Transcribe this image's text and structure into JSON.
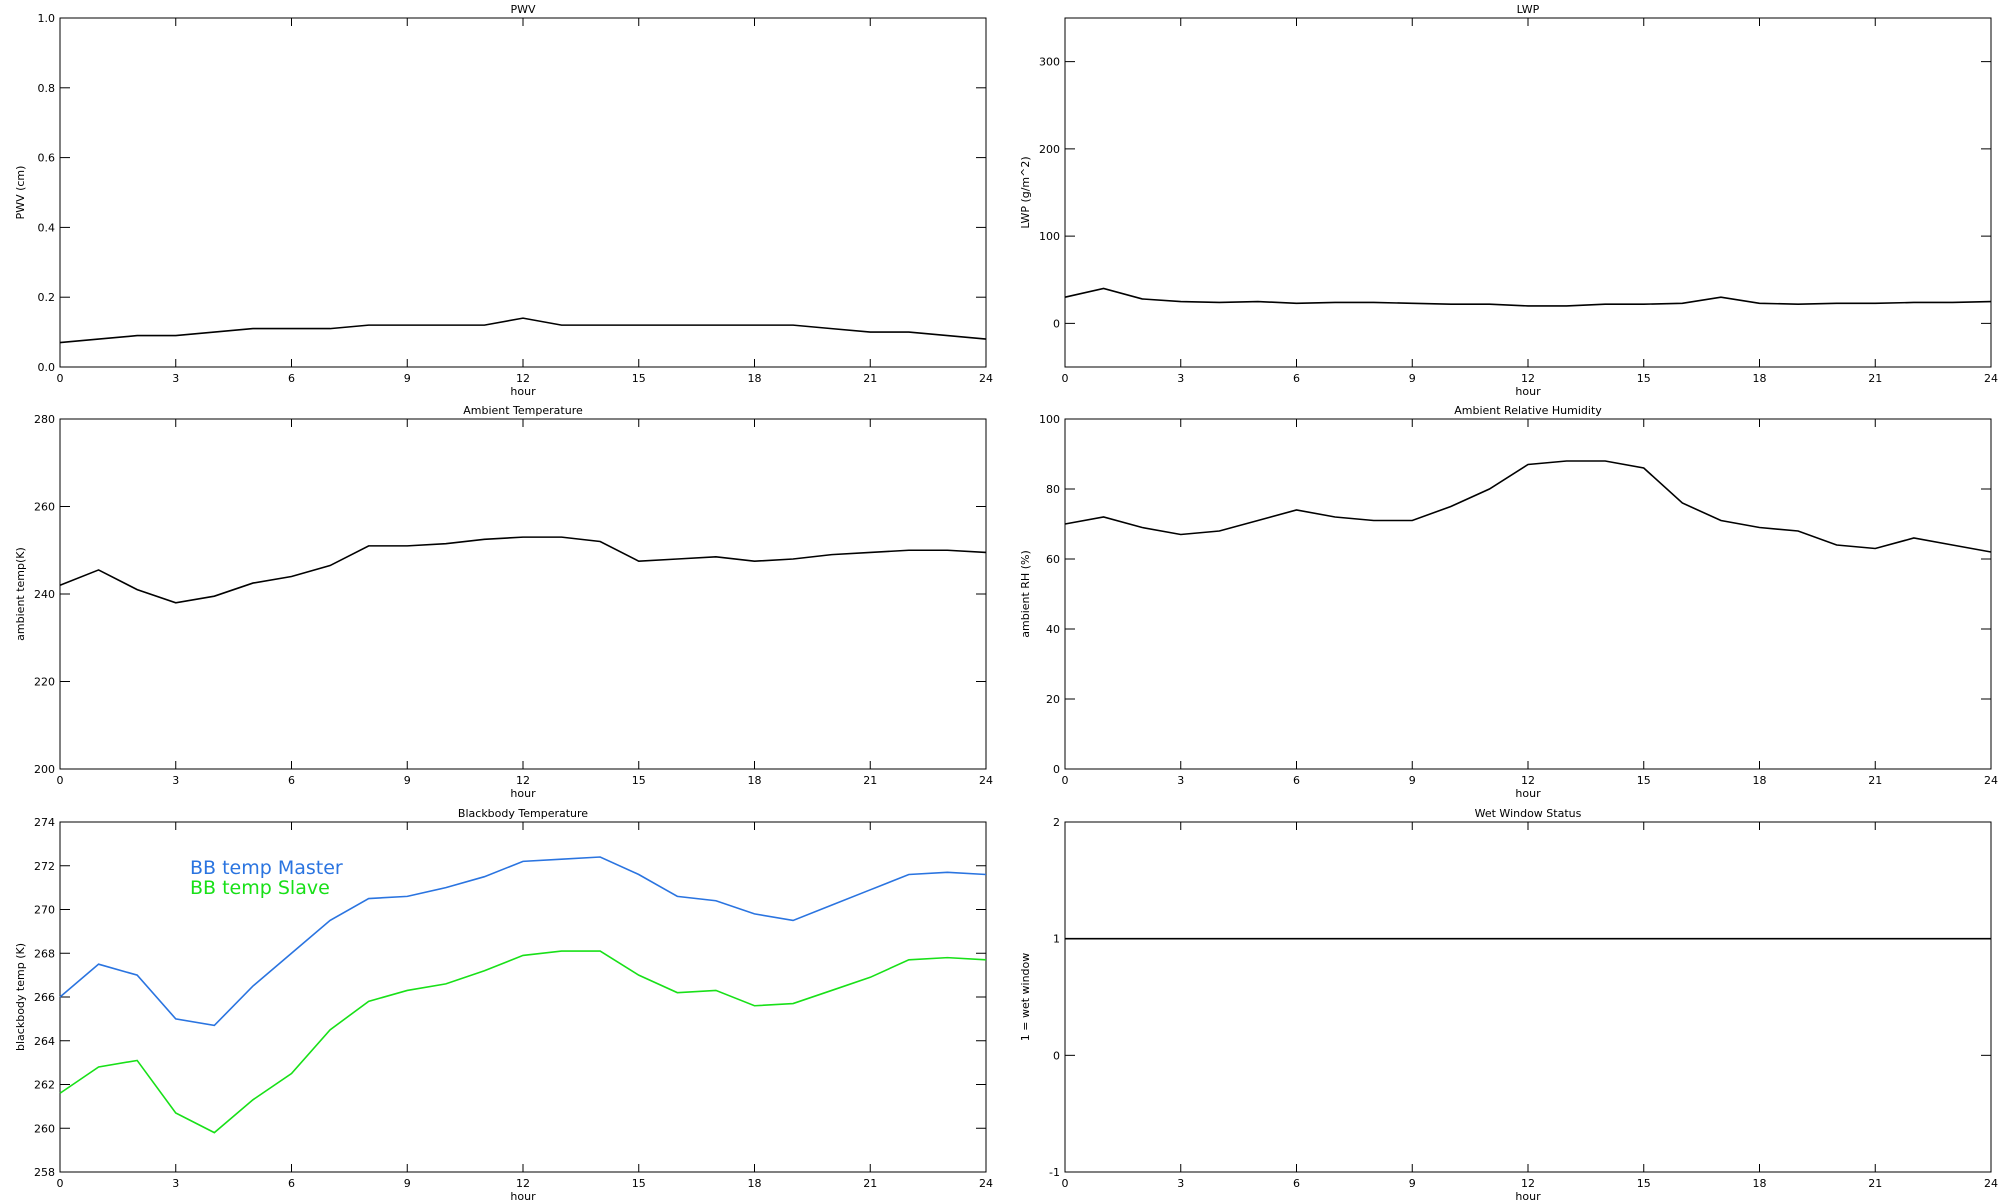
{
  "chart_data": [
    {
      "type": "line",
      "title": "PWV",
      "xlabel": "hour",
      "ylabel": "PWV (cm)",
      "x": [
        0,
        1,
        2,
        3,
        4,
        5,
        6,
        7,
        8,
        9,
        10,
        11,
        12,
        13,
        14,
        15,
        16,
        17,
        18,
        19,
        20,
        21,
        22,
        23,
        24
      ],
      "values": [
        0.07,
        0.08,
        0.09,
        0.09,
        0.1,
        0.11,
        0.11,
        0.11,
        0.12,
        0.12,
        0.12,
        0.12,
        0.14,
        0.12,
        0.12,
        0.12,
        0.12,
        0.12,
        0.12,
        0.12,
        0.11,
        0.1,
        0.1,
        0.09,
        0.08
      ],
      "color": "#000000",
      "xlim": [
        0,
        24
      ],
      "xticks": [
        0,
        3,
        6,
        9,
        12,
        15,
        18,
        21,
        24
      ],
      "ylim": [
        0,
        1
      ],
      "yticks": [
        {
          "value": 0,
          "label": "0.0"
        },
        {
          "value": 0.2,
          "label": "0.2"
        },
        {
          "value": 0.4,
          "label": "0.4"
        },
        {
          "value": 0.6,
          "label": "0.6"
        },
        {
          "value": 0.8,
          "label": "0.8"
        },
        {
          "value": 1,
          "label": "1.0"
        }
      ]
    },
    {
      "type": "line",
      "title": "LWP",
      "xlabel": "hour",
      "ylabel": "LWP (g/m^2)",
      "x": [
        0,
        1,
        2,
        3,
        4,
        5,
        6,
        7,
        8,
        9,
        10,
        11,
        12,
        13,
        14,
        15,
        16,
        17,
        18,
        19,
        20,
        21,
        22,
        23,
        24
      ],
      "values": [
        30,
        40,
        28,
        25,
        24,
        25,
        23,
        24,
        24,
        23,
        22,
        22,
        20,
        20,
        22,
        22,
        23,
        30,
        23,
        22,
        23,
        23,
        24,
        24,
        25
      ],
      "color": "#000000",
      "xlim": [
        0,
        24
      ],
      "xticks": [
        0,
        3,
        6,
        9,
        12,
        15,
        18,
        21,
        24
      ],
      "ylim": [
        -50,
        350
      ],
      "yticks": [
        0,
        100,
        200,
        300
      ]
    },
    {
      "type": "line",
      "title": "Ambient Temperature",
      "xlabel": "hour",
      "ylabel": "ambient temp(K)",
      "x": [
        0,
        1,
        2,
        3,
        4,
        5,
        6,
        7,
        8,
        9,
        10,
        11,
        12,
        13,
        14,
        15,
        16,
        17,
        18,
        19,
        20,
        21,
        22,
        23,
        24
      ],
      "values": [
        242,
        245.5,
        241,
        238,
        239.5,
        242.5,
        244,
        246.5,
        251,
        251,
        251.5,
        252.5,
        253,
        253,
        252,
        247.5,
        248,
        248.5,
        247.5,
        248,
        249,
        249.5,
        250,
        250,
        249.5
      ],
      "color": "#000000",
      "xlim": [
        0,
        24
      ],
      "xticks": [
        0,
        3,
        6,
        9,
        12,
        15,
        18,
        21,
        24
      ],
      "ylim": [
        200,
        280
      ],
      "yticks": [
        200,
        220,
        240,
        260,
        280
      ]
    },
    {
      "type": "line",
      "title": "Ambient Relative Humidity",
      "xlabel": "hour",
      "ylabel": "ambient RH (%)",
      "x": [
        0,
        1,
        2,
        3,
        4,
        5,
        6,
        7,
        8,
        9,
        10,
        11,
        12,
        13,
        14,
        15,
        16,
        17,
        18,
        19,
        20,
        21,
        22,
        23,
        24
      ],
      "values": [
        70,
        72,
        69,
        67,
        68,
        71,
        74,
        72,
        71,
        71,
        75,
        80,
        87,
        88,
        88,
        86,
        76,
        71,
        69,
        68,
        64,
        63,
        66,
        64,
        62
      ],
      "color": "#000000",
      "xlim": [
        0,
        24
      ],
      "xticks": [
        0,
        3,
        6,
        9,
        12,
        15,
        18,
        21,
        24
      ],
      "ylim": [
        0,
        100
      ],
      "yticks": [
        0,
        20,
        40,
        60,
        80,
        100
      ]
    },
    {
      "type": "line",
      "title": "Blackbody Temperature",
      "xlabel": "hour",
      "ylabel": "blackbody temp (K)",
      "x": [
        0,
        1,
        2,
        3,
        4,
        5,
        6,
        7,
        8,
        9,
        10,
        11,
        12,
        13,
        14,
        15,
        16,
        17,
        18,
        19,
        20,
        21,
        22,
        23,
        24
      ],
      "series": [
        {
          "name": "BB temp Master",
          "color": "#2a74e0",
          "values": [
            266,
            267.5,
            267,
            265,
            264.7,
            266.5,
            268,
            269.5,
            270.5,
            270.6,
            271,
            271.5,
            272.2,
            272.3,
            272.4,
            271.6,
            270.6,
            270.4,
            269.8,
            269.5,
            270.2,
            270.9,
            271.6,
            271.7,
            271.6
          ]
        },
        {
          "name": "BB temp Slave",
          "color": "#18e018",
          "values": [
            261.6,
            262.8,
            263.1,
            260.7,
            259.8,
            261.3,
            262.5,
            264.5,
            265.8,
            266.3,
            266.6,
            267.2,
            267.9,
            268.1,
            268.1,
            267,
            266.2,
            266.3,
            265.6,
            265.7,
            266.3,
            266.9,
            267.7,
            267.8,
            267.7
          ]
        }
      ],
      "xlim": [
        0,
        24
      ],
      "xticks": [
        0,
        3,
        6,
        9,
        12,
        15,
        18,
        21,
        24
      ],
      "ylim": [
        258,
        274
      ],
      "yticks": [
        258,
        260,
        262,
        264,
        266,
        268,
        270,
        272,
        274
      ],
      "legend": "upper left"
    },
    {
      "type": "line",
      "title": "Wet Window Status",
      "xlabel": "hour",
      "ylabel": "1 = wet window",
      "x": [
        0,
        24
      ],
      "values": [
        1,
        1
      ],
      "color": "#000000",
      "xlim": [
        0,
        24
      ],
      "xticks": [
        0,
        3,
        6,
        9,
        12,
        15,
        18,
        21,
        24
      ],
      "ylim": [
        -1,
        2
      ],
      "yticks": [
        -1,
        0,
        1,
        2
      ]
    }
  ]
}
